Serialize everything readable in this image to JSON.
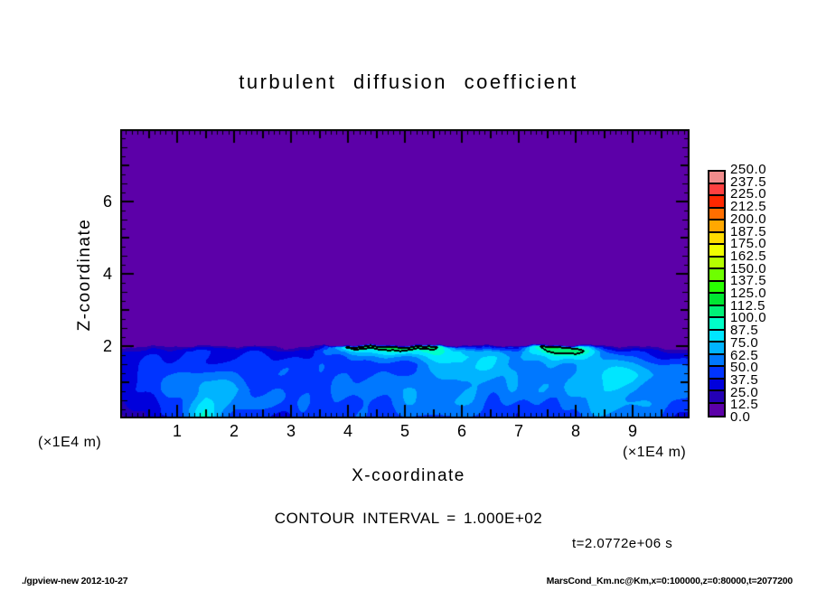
{
  "footer": {
    "left": "./gpview-new  2012-10-27",
    "right": "MarsCond_Km.nc@Km,x=0:100000,z=0:80000,t=2077200"
  },
  "chart_data": {
    "type": "filled_contour",
    "title": "turbulent diffusion coefficient",
    "xlabel": "X-coordinate",
    "ylabel": "Z-coordinate",
    "unit_left": "(×1E4 m)",
    "unit_right": "(×1E4 m)",
    "contour_interval_label": "CONTOUR INTERVAL = 1.000E+02",
    "contour_level": 100,
    "time_label": "t=2.0772e+06 s",
    "x_range": [
      0,
      10
    ],
    "z_range": [
      0,
      8
    ],
    "x_major_ticks": [
      1,
      2,
      3,
      4,
      5,
      6,
      7,
      8,
      9
    ],
    "z_major_ticks": [
      2,
      4,
      6
    ],
    "grid_on": false,
    "colorbar": {
      "min": 0.0,
      "max": 250.0,
      "step": 12.5,
      "labels_top_to_bottom": [
        "250.0",
        "237.5",
        "225.0",
        "212.5",
        "200.0",
        "187.5",
        "175.0",
        "162.5",
        "150.0",
        "137.5",
        "125.0",
        "112.5",
        "100.0",
        "87.5",
        "75.0",
        "62.5",
        "50.0",
        "37.5",
        "25.0",
        "12.5",
        "0.0"
      ],
      "colors_bottom_to_top": [
        "#5C00A8",
        "#2400B4",
        "#0000DC",
        "#0034FF",
        "#0078FF",
        "#00B4FF",
        "#00E6FF",
        "#00FFC8",
        "#00F078",
        "#00E632",
        "#28FF00",
        "#6EFF00",
        "#B4FF00",
        "#F0FF00",
        "#FFDC00",
        "#FFA800",
        "#FF6E00",
        "#FF2800",
        "#FF4040",
        "#F08C8C"
      ]
    },
    "grid": {
      "x": [
        0,
        0.5,
        1,
        1.5,
        2,
        2.5,
        3,
        3.5,
        4,
        4.5,
        5,
        5.5,
        6,
        6.5,
        7,
        7.5,
        8,
        8.5,
        9,
        9.5,
        10
      ],
      "z": [
        0,
        0.4,
        0.8,
        1.2,
        1.5,
        1.7,
        1.85,
        1.97,
        2.03,
        2.2,
        8
      ],
      "values": [
        [
          8,
          25,
          35,
          92,
          45,
          40,
          38,
          40,
          42,
          45,
          48,
          50,
          48,
          45,
          42,
          45,
          48,
          55,
          50,
          45,
          40
        ],
        [
          20,
          35,
          50,
          85,
          55,
          48,
          45,
          48,
          50,
          52,
          55,
          58,
          56,
          52,
          50,
          52,
          55,
          68,
          62,
          55,
          48
        ],
        [
          30,
          45,
          55,
          70,
          62,
          52,
          48,
          50,
          52,
          55,
          58,
          62,
          65,
          60,
          55,
          56,
          60,
          78,
          72,
          60,
          52
        ],
        [
          35,
          45,
          50,
          55,
          50,
          48,
          45,
          46,
          48,
          50,
          52,
          58,
          68,
          66,
          58,
          60,
          62,
          82,
          75,
          58,
          50
        ],
        [
          30,
          40,
          45,
          45,
          45,
          42,
          40,
          42,
          45,
          48,
          50,
          62,
          76,
          70,
          60,
          62,
          66,
          70,
          64,
          50,
          45
        ],
        [
          28,
          35,
          40,
          40,
          40,
          38,
          35,
          38,
          55,
          60,
          62,
          76,
          85,
          74,
          65,
          72,
          82,
          58,
          52,
          40,
          35
        ],
        [
          22,
          30,
          35,
          35,
          35,
          32,
          28,
          45,
          72,
          80,
          85,
          90,
          78,
          64,
          60,
          95,
          112,
          48,
          42,
          30,
          22
        ],
        [
          10,
          15,
          20,
          22,
          22,
          20,
          8,
          22,
          105,
          116,
          112,
          108,
          45,
          35,
          40,
          118,
          96,
          25,
          20,
          6,
          4
        ],
        [
          0,
          0,
          0,
          0,
          0,
          0,
          0,
          0,
          8,
          10,
          6,
          5,
          0,
          0,
          2,
          12,
          6,
          0,
          0,
          0,
          0
        ],
        [
          0,
          0,
          0,
          0,
          0,
          0,
          0,
          0,
          0,
          0,
          0,
          0,
          0,
          0,
          0,
          0,
          0,
          0,
          0,
          0,
          0
        ],
        [
          0,
          0,
          0,
          0,
          0,
          0,
          0,
          0,
          0,
          0,
          0,
          0,
          0,
          0,
          0,
          0,
          0,
          0,
          0,
          0,
          0
        ]
      ]
    }
  }
}
